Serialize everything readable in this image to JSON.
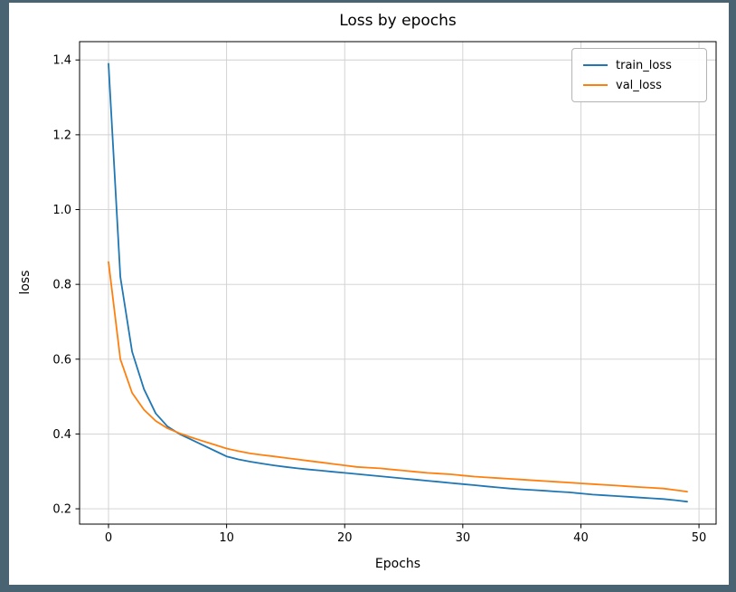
{
  "figure": {
    "frame_color": "#4a6372",
    "background": "#ffffff"
  },
  "chart_data": {
    "type": "line",
    "title": "Loss by epochs",
    "xlabel": "Epochs",
    "ylabel": "loss",
    "grid": true,
    "legend_position": "upper right",
    "xlim": [
      -2.45,
      51.45
    ],
    "ylim": [
      0.159,
      1.449
    ],
    "xticks": [
      0,
      10,
      20,
      30,
      40,
      50
    ],
    "yticks": [
      0.2,
      0.4,
      0.6,
      0.8,
      1.0,
      1.2,
      1.4
    ],
    "grid_color": "#cfcfcf",
    "x": [
      0,
      1,
      2,
      3,
      4,
      5,
      6,
      7,
      8,
      9,
      10,
      11,
      12,
      13,
      14,
      15,
      16,
      17,
      18,
      19,
      20,
      21,
      22,
      23,
      24,
      25,
      26,
      27,
      28,
      29,
      30,
      31,
      32,
      33,
      34,
      35,
      36,
      37,
      38,
      39,
      40,
      41,
      42,
      43,
      44,
      45,
      46,
      47,
      48,
      49
    ],
    "series": [
      {
        "name": "train_loss",
        "color": "#1f77b4",
        "values": [
          1.39,
          0.82,
          0.62,
          0.52,
          0.455,
          0.42,
          0.4,
          0.385,
          0.37,
          0.355,
          0.34,
          0.332,
          0.326,
          0.321,
          0.316,
          0.312,
          0.308,
          0.305,
          0.302,
          0.299,
          0.296,
          0.293,
          0.29,
          0.287,
          0.284,
          0.281,
          0.278,
          0.275,
          0.272,
          0.269,
          0.266,
          0.263,
          0.26,
          0.257,
          0.254,
          0.252,
          0.25,
          0.248,
          0.246,
          0.244,
          0.241,
          0.238,
          0.236,
          0.234,
          0.232,
          0.23,
          0.228,
          0.226,
          0.223,
          0.219
        ]
      },
      {
        "name": "val_loss",
        "color": "#ff7f0e",
        "values": [
          0.86,
          0.6,
          0.51,
          0.465,
          0.435,
          0.415,
          0.402,
          0.391,
          0.381,
          0.371,
          0.361,
          0.354,
          0.348,
          0.344,
          0.34,
          0.336,
          0.332,
          0.328,
          0.324,
          0.32,
          0.316,
          0.312,
          0.31,
          0.308,
          0.305,
          0.302,
          0.299,
          0.296,
          0.294,
          0.292,
          0.289,
          0.286,
          0.284,
          0.282,
          0.28,
          0.278,
          0.276,
          0.274,
          0.272,
          0.27,
          0.268,
          0.266,
          0.264,
          0.262,
          0.26,
          0.258,
          0.256,
          0.254,
          0.25,
          0.246
        ]
      }
    ]
  }
}
